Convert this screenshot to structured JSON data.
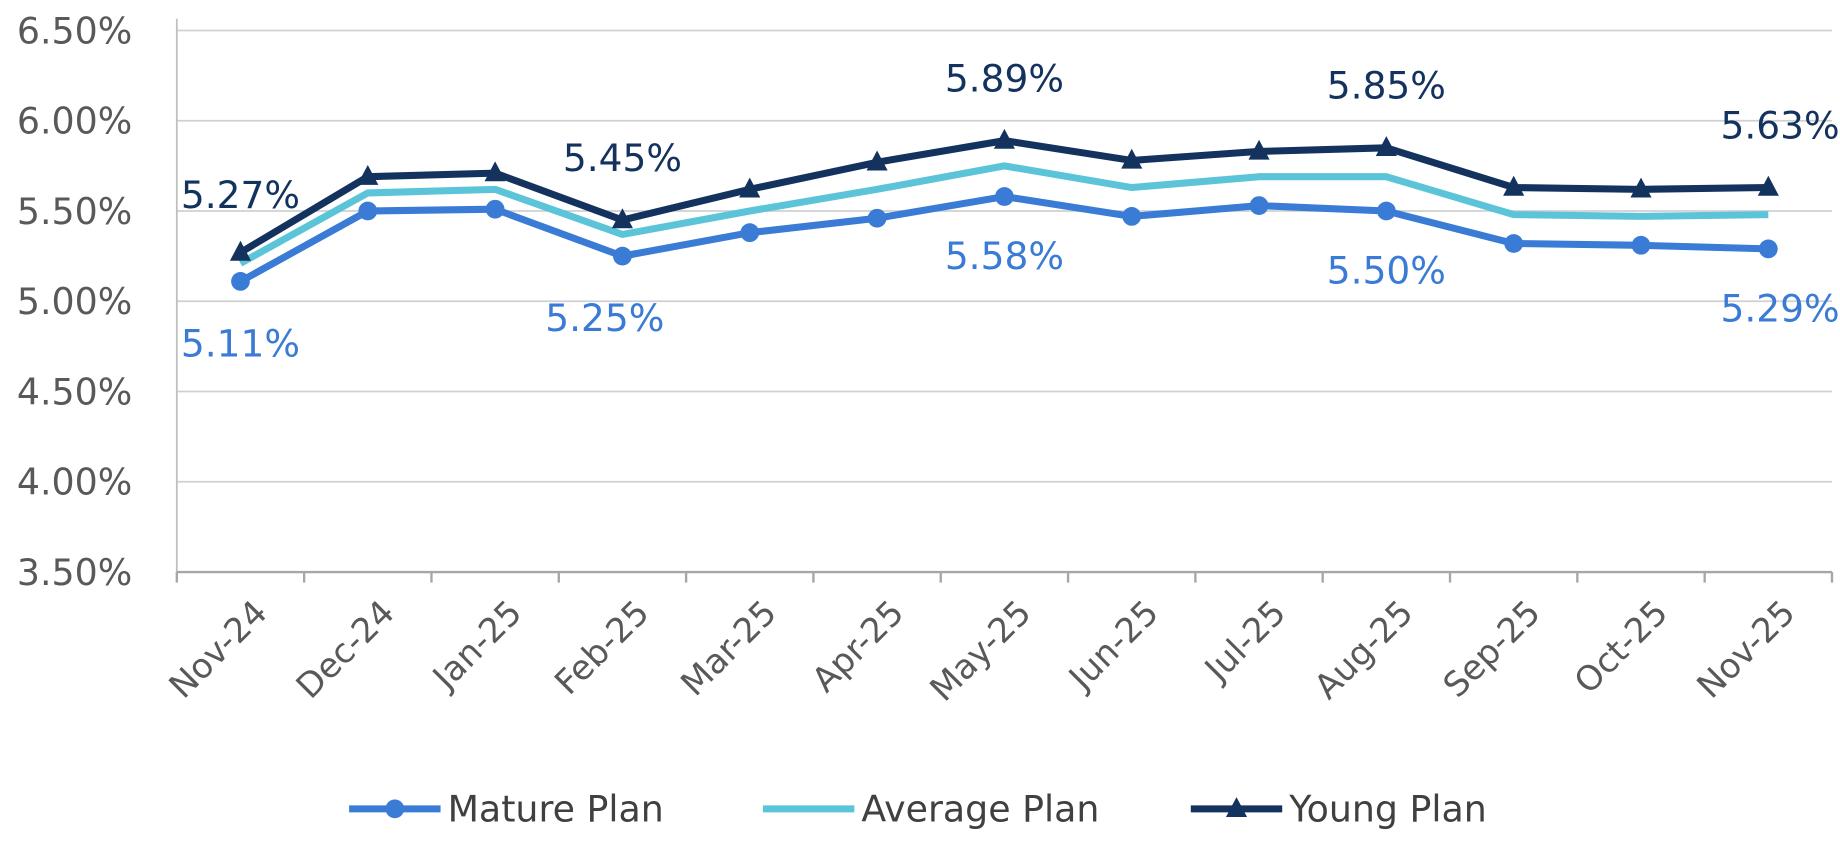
{
  "chart_data": {
    "type": "line",
    "title": "",
    "xlabel": "",
    "ylabel": "",
    "categories": [
      "Nov-24",
      "Dec-24",
      "Jan-25",
      "Feb-25",
      "Mar-25",
      "Apr-25",
      "May-25",
      "Jun-25",
      "Jul-25",
      "Aug-25",
      "Sep-25",
      "Oct-25",
      "Nov-25"
    ],
    "ylim": [
      3.5,
      6.5
    ],
    "yticks": [
      3.5,
      4.0,
      4.5,
      5.0,
      5.5,
      6.0,
      6.5
    ],
    "ytick_labels": [
      "3.50%",
      "4.00%",
      "4.50%",
      "5.00%",
      "5.50%",
      "6.00%",
      "6.50%"
    ],
    "grid": "horizontal",
    "legend_position": "bottom",
    "series": [
      {
        "name": "Mature Plan",
        "color": "#3A7BD5",
        "marker": "circle",
        "values": [
          5.11,
          5.5,
          5.51,
          5.25,
          5.38,
          5.46,
          5.58,
          5.47,
          5.53,
          5.5,
          5.32,
          5.31,
          5.29
        ],
        "data_labels": {
          "0": "5.11%",
          "3": "5.25%",
          "6": "5.58%",
          "9": "5.50%",
          "12": "5.29%"
        }
      },
      {
        "name": "Average Plan",
        "color": "#5BC4D8",
        "marker": "none",
        "values": [
          5.21,
          5.6,
          5.62,
          5.37,
          5.5,
          5.62,
          5.75,
          5.63,
          5.69,
          5.69,
          5.48,
          5.47,
          5.48
        ],
        "data_labels": {}
      },
      {
        "name": "Young Plan",
        "color": "#14325E",
        "marker": "triangle",
        "values": [
          5.27,
          5.69,
          5.71,
          5.45,
          5.62,
          5.77,
          5.89,
          5.78,
          5.83,
          5.85,
          5.63,
          5.62,
          5.63
        ],
        "data_labels": {
          "0": "5.27%",
          "3": "5.45%",
          "6": "5.89%",
          "9": "5.85%",
          "12": "5.63%"
        }
      }
    ]
  }
}
